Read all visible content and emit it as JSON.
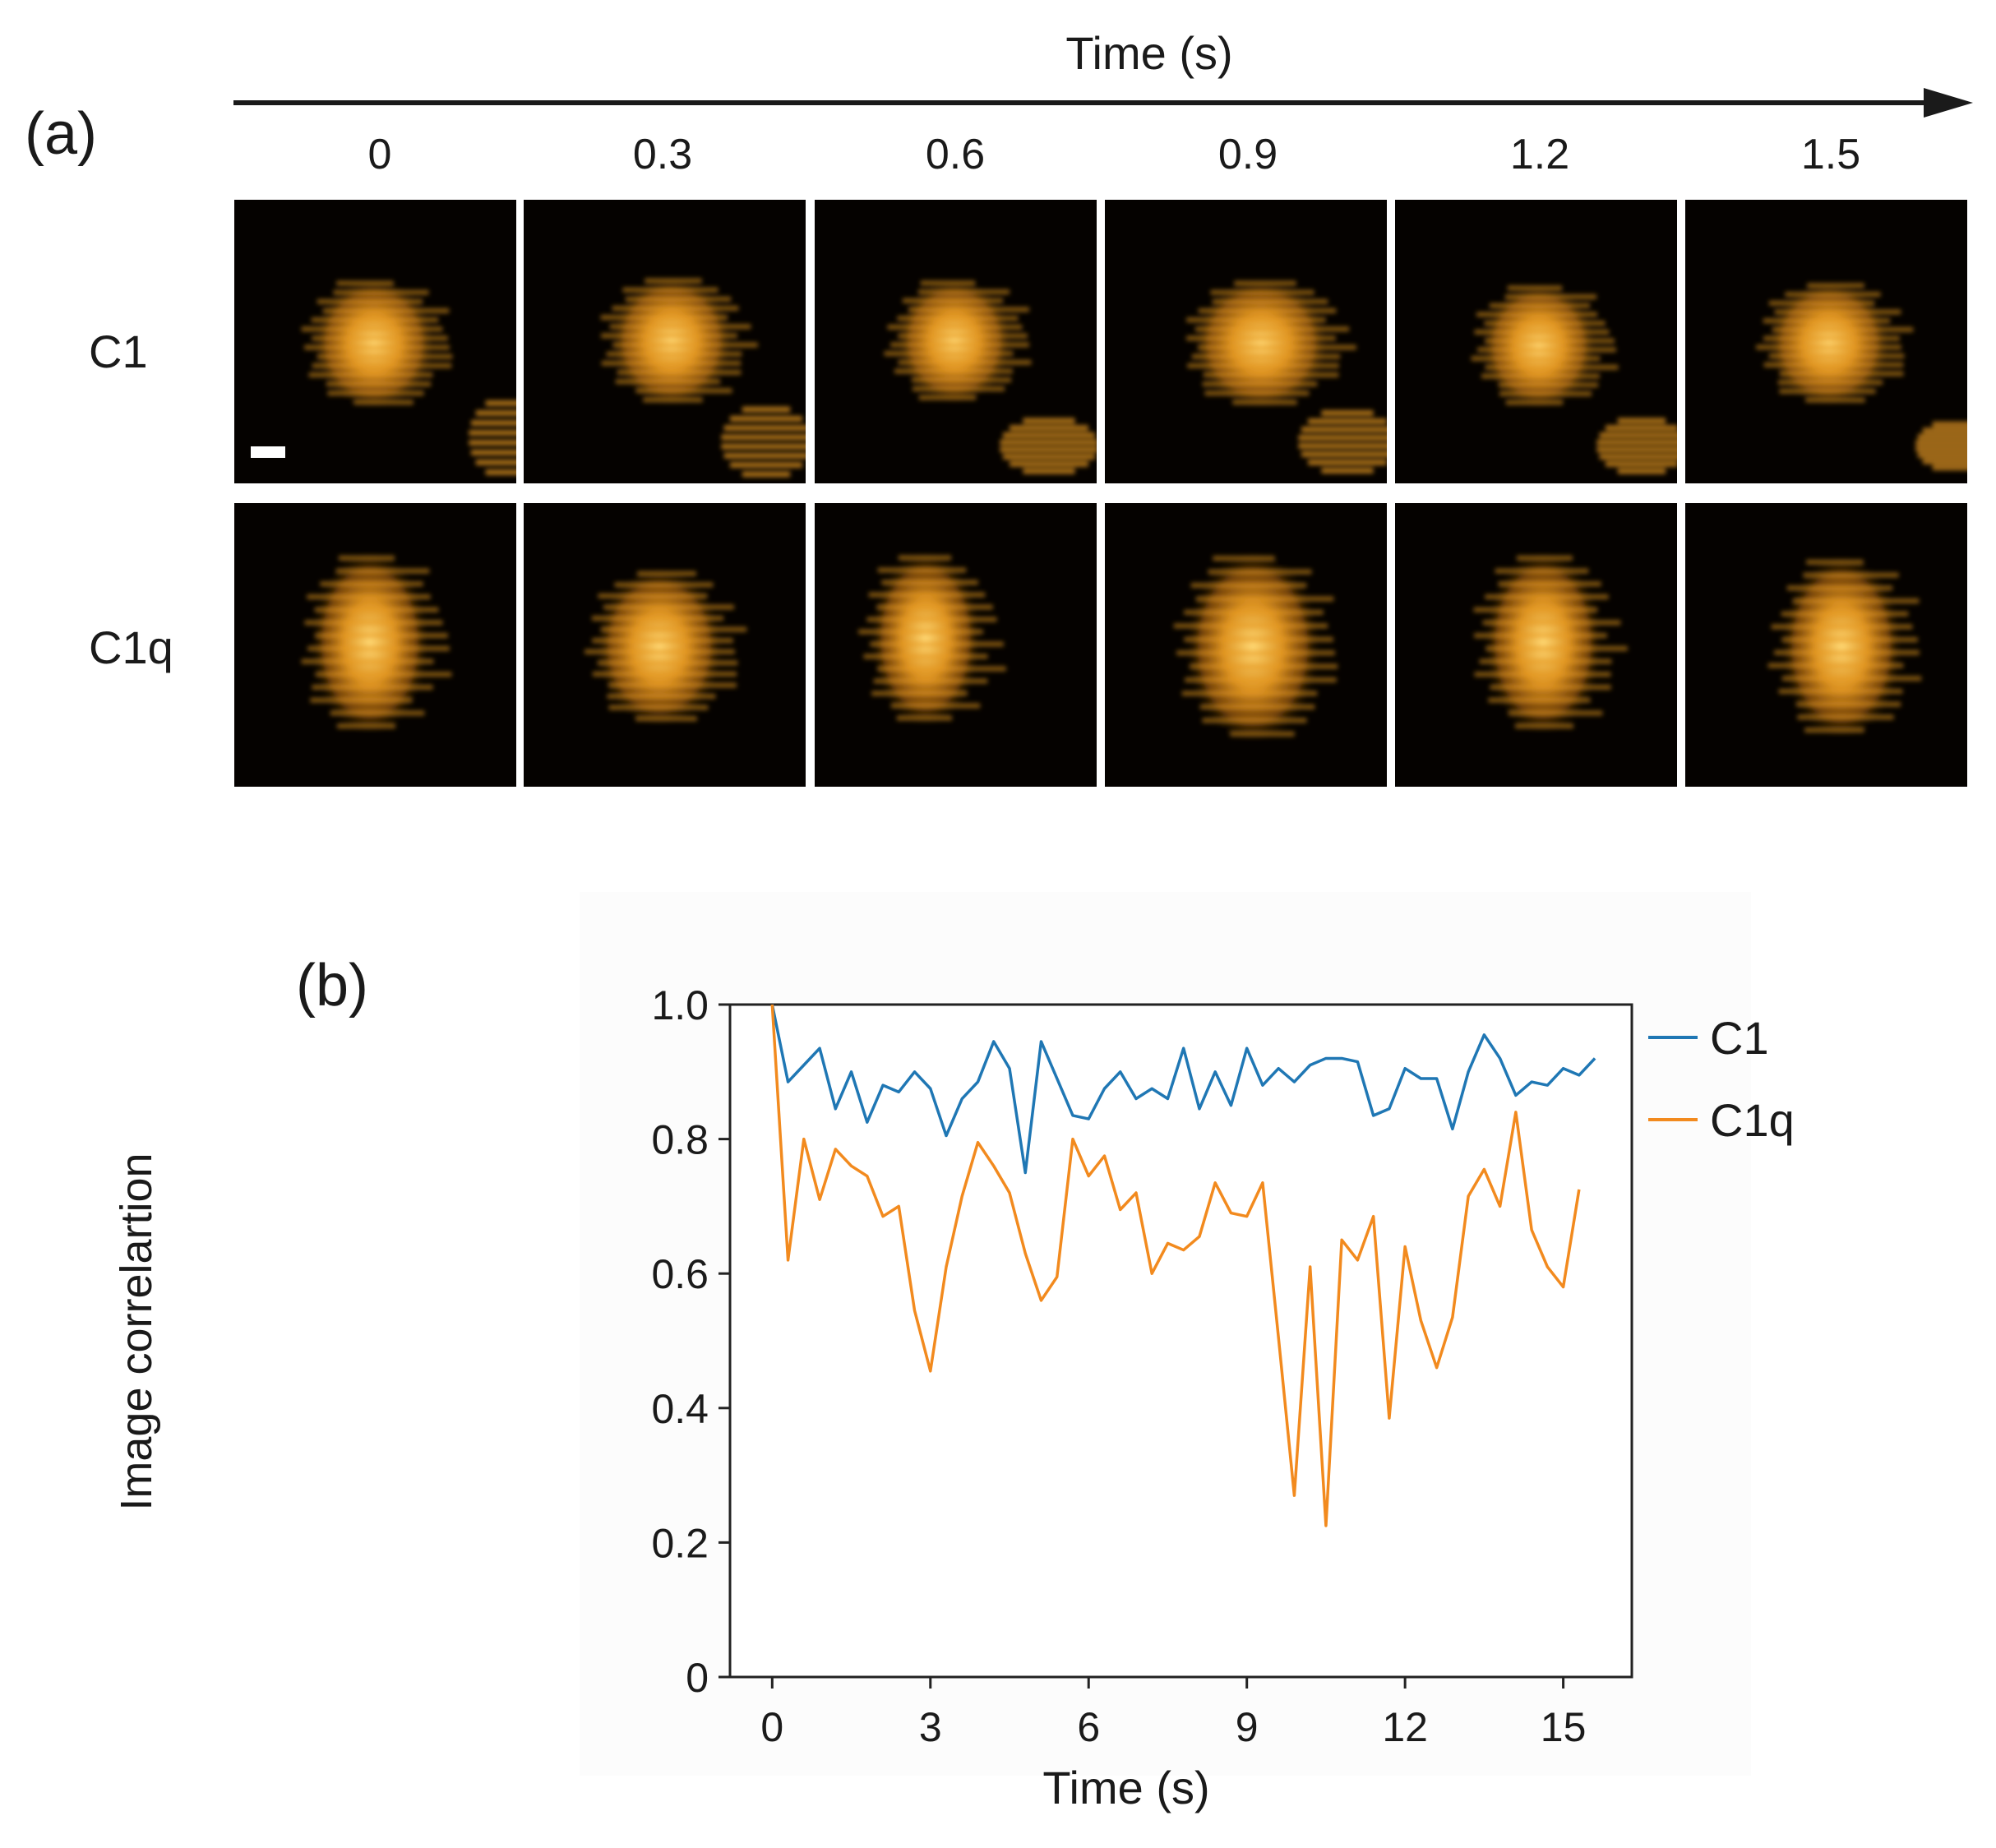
{
  "panel_a": {
    "label": "(a)",
    "axis_title": "Time (s)",
    "time_points": [
      "0",
      "0.3",
      "0.6",
      "0.9",
      "1.2",
      "1.5"
    ],
    "rows": [
      {
        "label": "C1"
      },
      {
        "label": "C1q"
      }
    ],
    "colors": {
      "frame_bg": "#050200",
      "particle": "#e89a22",
      "particle_bright": "#ffd873",
      "divider": "#ffffff"
    }
  },
  "panel_b": {
    "label": "(b)",
    "chart_data": {
      "type": "line",
      "title": "",
      "xlabel": "Time (s)",
      "ylabel": "Image correlartion",
      "xlim": [
        -0.8,
        16.3
      ],
      "ylim": [
        0,
        1.0
      ],
      "xticks": [
        "0",
        "3",
        "6",
        "9",
        "12",
        "15"
      ],
      "yticks": [
        "0",
        "0.2",
        "0.4",
        "0.6",
        "0.8",
        "1.0"
      ],
      "legend_position": "right",
      "series": [
        {
          "name": "C1",
          "color": "#1f77b4",
          "x": [
            0,
            0.3,
            0.6,
            0.9,
            1.2,
            1.5,
            1.8,
            2.1,
            2.4,
            2.7,
            3.0,
            3.3,
            3.6,
            3.9,
            4.2,
            4.5,
            4.8,
            5.1,
            5.4,
            5.7,
            6.0,
            6.3,
            6.6,
            6.9,
            7.2,
            7.5,
            7.8,
            8.1,
            8.4,
            8.7,
            9.0,
            9.3,
            9.6,
            9.9,
            10.2,
            10.5,
            10.8,
            11.1,
            11.4,
            11.7,
            12.0,
            12.3,
            12.6,
            12.9,
            13.2,
            13.5,
            13.8,
            14.1,
            14.4,
            14.7,
            15.0,
            15.3,
            15.6
          ],
          "values": [
            1.0,
            0.885,
            0.91,
            0.935,
            0.845,
            0.9,
            0.825,
            0.88,
            0.87,
            0.9,
            0.875,
            0.805,
            0.86,
            0.885,
            0.945,
            0.905,
            0.75,
            0.945,
            0.89,
            0.835,
            0.83,
            0.875,
            0.9,
            0.86,
            0.875,
            0.86,
            0.935,
            0.845,
            0.9,
            0.85,
            0.935,
            0.88,
            0.905,
            0.885,
            0.91,
            0.92,
            0.92,
            0.915,
            0.835,
            0.845,
            0.905,
            0.89,
            0.89,
            0.815,
            0.9,
            0.955,
            0.92,
            0.865,
            0.885,
            0.88,
            0.905,
            0.895,
            0.92
          ]
        },
        {
          "name": "C1q",
          "color": "#f28a1e",
          "x": [
            0,
            0.3,
            0.6,
            0.9,
            1.2,
            1.5,
            1.8,
            2.1,
            2.4,
            2.7,
            3.0,
            3.3,
            3.6,
            3.9,
            4.2,
            4.5,
            4.8,
            5.1,
            5.4,
            5.7,
            6.0,
            6.3,
            6.6,
            6.9,
            7.2,
            7.5,
            7.8,
            8.1,
            8.4,
            8.7,
            9.0,
            9.3,
            9.6,
            9.9,
            10.2,
            10.5,
            10.8,
            11.1,
            11.4,
            11.7,
            12.0,
            12.3,
            12.6,
            12.9,
            13.2,
            13.5,
            13.8,
            14.1,
            14.4,
            14.7,
            15.0,
            15.3
          ],
          "values": [
            1.0,
            0.62,
            0.8,
            0.71,
            0.785,
            0.76,
            0.745,
            0.685,
            0.7,
            0.545,
            0.455,
            0.61,
            0.715,
            0.795,
            0.76,
            0.72,
            0.63,
            0.56,
            0.595,
            0.8,
            0.745,
            0.775,
            0.695,
            0.72,
            0.6,
            0.645,
            0.635,
            0.655,
            0.735,
            0.69,
            0.685,
            0.735,
            0.505,
            0.27,
            0.61,
            0.225,
            0.65,
            0.62,
            0.685,
            0.385,
            0.64,
            0.53,
            0.46,
            0.535,
            0.715,
            0.755,
            0.7,
            0.84,
            0.665,
            0.61,
            0.58,
            0.725
          ]
        }
      ]
    }
  }
}
